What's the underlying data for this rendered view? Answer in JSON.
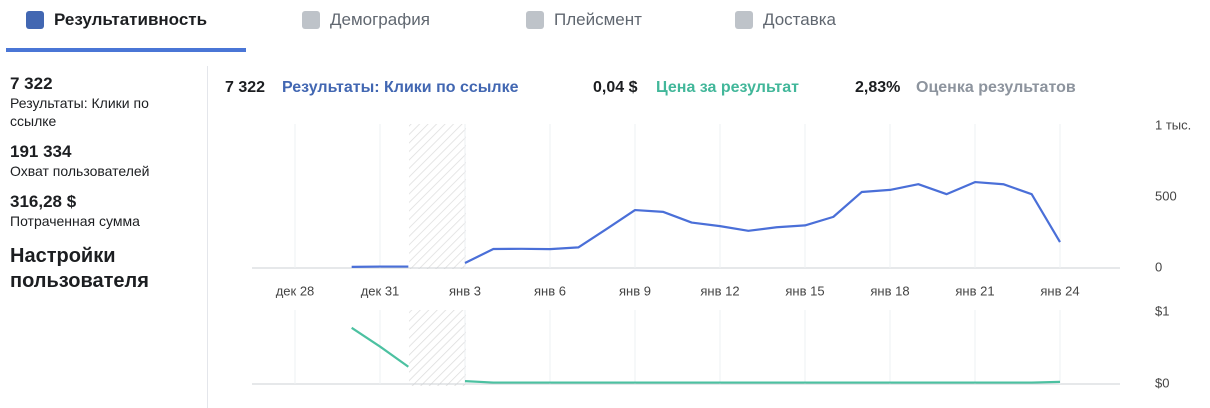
{
  "tabs": [
    "Результативность",
    "Демография",
    "Плейсмент",
    "Доставка"
  ],
  "sidebar": {
    "metrics": [
      {
        "value": "7 322",
        "label": "Результаты: Клики по ссылке"
      },
      {
        "value": "191 334",
        "label": "Охват пользователей"
      },
      {
        "value": "316,28 $",
        "label": "Потраченная сумма"
      }
    ],
    "settings": "Настройки пользователя"
  },
  "header": [
    "7 322",
    "0,04 $",
    "2,83%"
  ],
  "header_extra": "Оценка результатов",
  "chart_data": [
    {
      "type": "line",
      "categories": [
        "дек 28",
        null,
        null,
        "дек 31",
        null,
        null,
        "янв 3",
        null,
        null,
        "янв 6",
        null,
        null,
        "янв 9",
        null,
        null,
        "янв 12",
        null,
        null,
        "янв 15",
        null,
        null,
        "янв 18",
        null,
        null,
        "янв 21",
        null,
        null,
        "янв 24"
      ],
      "series": [
        {
          "name": "Результаты: Клики по ссылке",
          "color": "#4a6fd8",
          "values": [
            null,
            null,
            8,
            10,
            10,
            null,
            35,
            134,
            135,
            133,
            145,
            275,
            408,
            395,
            320,
            295,
            262,
            287,
            300,
            360,
            535,
            550,
            590,
            520,
            605,
            590,
            520,
            183
          ]
        }
      ],
      "ylim": [
        0,
        1000
      ],
      "yticks": [
        0,
        500,
        {
          "value": 1000,
          "label": "1 тыс."
        }
      ],
      "grid": true
    },
    {
      "type": "line",
      "series": [
        {
          "name": "Цена за результат",
          "color": "#4cc1a1",
          "values": [
            null,
            null,
            0.78,
            0.52,
            0.24,
            null,
            0.04,
            0.02,
            0.02,
            0.02,
            0.02,
            0.02,
            0.02,
            0.02,
            0.02,
            0.02,
            0.02,
            0.02,
            0.02,
            0.02,
            0.02,
            0.02,
            0.02,
            0.02,
            0.02,
            0.02,
            0.02,
            0.03
          ]
        }
      ],
      "ylim": [
        0,
        1
      ],
      "yticks": [
        {
          "value": 0,
          "label": "$0"
        },
        {
          "value": 1,
          "label": "$1"
        }
      ],
      "grid": true
    }
  ]
}
